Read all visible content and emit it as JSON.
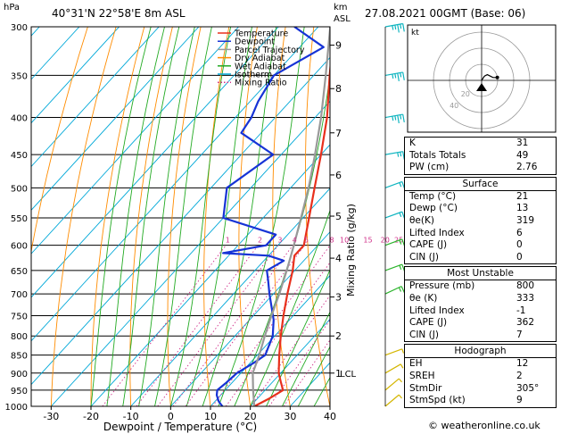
{
  "header": {
    "pressure_unit": "hPa",
    "location": "40°31'N  22°58'E  8m  ASL",
    "height_unit": "km",
    "height_unit_sub": "ASL",
    "datetime": "27.08.2021  00GMT  (Base: 06)"
  },
  "chart_data": {
    "type": "skew-t",
    "xlabel": "Dewpoint / Temperature (°C)",
    "ylabel": "hPa",
    "right_axis_label": "Mixing Ratio (g/kg)",
    "pressure_levels": [
      300,
      350,
      400,
      450,
      500,
      550,
      600,
      650,
      700,
      750,
      800,
      850,
      900,
      950,
      1000
    ],
    "temp_ticks": [
      -30,
      -20,
      -10,
      0,
      10,
      20,
      30,
      40
    ],
    "xlim": [
      -35,
      40
    ],
    "plim": [
      300,
      1000
    ],
    "height_ticks": [
      {
        "km": "1",
        "p": 900
      },
      {
        "km": "2",
        "p": 800
      },
      {
        "km": "3",
        "p": 707
      },
      {
        "km": "4",
        "p": 625
      },
      {
        "km": "5",
        "p": 547
      },
      {
        "km": "6",
        "p": 480
      },
      {
        "km": "7",
        "p": 420
      },
      {
        "km": "8",
        "p": 365
      },
      {
        "km": "9",
        "p": 318
      }
    ],
    "lcl_label": "LCL",
    "lcl_pressure": 900,
    "mixing_ratio_labels": [
      "1",
      "2",
      "3",
      "4",
      "5",
      "8",
      "10",
      "15",
      "20",
      "25"
    ],
    "legend": [
      {
        "label": "Temperature",
        "color": "#e8301c",
        "style": "solid"
      },
      {
        "label": "Dewpoint",
        "color": "#1633d6",
        "style": "solid"
      },
      {
        "label": "Parcel Trajectory",
        "color": "#999999",
        "style": "solid"
      },
      {
        "label": "Dry Adiabat",
        "color": "#ff8c00",
        "style": "solid"
      },
      {
        "label": "Wet Adiabat",
        "color": "#22aa22",
        "style": "solid"
      },
      {
        "label": "Isotherm",
        "color": "#00a8d8",
        "style": "solid"
      },
      {
        "label": "Mixing Ratio",
        "color": "#d0308a",
        "style": "dotted"
      }
    ],
    "series": [
      {
        "name": "Temperature",
        "p": [
          1000,
          975,
          950,
          925,
          900,
          850,
          800,
          750,
          700,
          650,
          620,
          600,
          550,
          500,
          450,
          400,
          350,
          300
        ],
        "t": [
          21,
          23,
          24.5,
          22,
          19.5,
          15.5,
          11.5,
          7.5,
          3.5,
          -0.5,
          -3.5,
          -3.5,
          -8.5,
          -14,
          -20,
          -27,
          -36,
          -46
        ]
      },
      {
        "name": "Dewpoint",
        "p": [
          1000,
          985,
          965,
          950,
          930,
          900,
          870,
          850,
          800,
          760,
          700,
          670,
          650,
          630,
          620,
          615,
          600,
          580,
          550,
          500,
          450,
          420,
          400,
          380,
          350,
          320,
          300
        ],
        "t": [
          13,
          11,
          9,
          8,
          8.5,
          9,
          11,
          12,
          9.5,
          6,
          -1,
          -4.5,
          -7,
          -5,
          -10,
          -22,
          -13,
          -13,
          -30,
          -36,
          -32,
          -45,
          -46,
          -48,
          -50,
          -44,
          -56
        ]
      },
      {
        "name": "Parcel Trajectory",
        "p": [
          1000,
          950,
          900,
          850,
          800,
          750,
          700,
          650,
          600,
          550,
          500,
          450,
          400,
          350,
          300
        ],
        "t": [
          21,
          17,
          13,
          10.5,
          7.5,
          4.5,
          1.5,
          -2,
          -6,
          -10.5,
          -15.5,
          -21.5,
          -28.5,
          -37,
          -47
        ]
      }
    ],
    "wind_barbs": [
      {
        "p": 1000,
        "dir": 230,
        "kt": 5
      },
      {
        "p": 950,
        "dir": 230,
        "kt": 5
      },
      {
        "p": 900,
        "dir": 240,
        "kt": 5
      },
      {
        "p": 850,
        "dir": 250,
        "kt": 5
      },
      {
        "p": 700,
        "dir": 245,
        "kt": 10
      },
      {
        "p": 650,
        "dir": 250,
        "kt": 10
      },
      {
        "p": 600,
        "dir": 250,
        "kt": 10
      },
      {
        "p": 550,
        "dir": 250,
        "kt": 10
      },
      {
        "p": 500,
        "dir": 250,
        "kt": 10
      },
      {
        "p": 450,
        "dir": 260,
        "kt": 15
      },
      {
        "p": 400,
        "dir": 260,
        "kt": 25
      },
      {
        "p": 350,
        "dir": 260,
        "kt": 25
      },
      {
        "p": 300,
        "dir": 260,
        "kt": 25
      }
    ]
  },
  "hodograph": {
    "unit": "kt",
    "rings": [
      {
        "label": "20"
      },
      {
        "label": "40"
      }
    ],
    "points": [
      [
        0,
        0
      ],
      [
        2,
        3
      ],
      [
        4,
        4
      ],
      [
        6,
        3
      ],
      [
        8,
        2
      ],
      [
        11,
        2
      ]
    ]
  },
  "indices": {
    "rows": [
      {
        "label": "K",
        "value": "31"
      },
      {
        "label": "Totals Totals",
        "value": "49"
      },
      {
        "label": "PW (cm)",
        "value": "2.76"
      }
    ]
  },
  "surface": {
    "title": "Surface",
    "rows": [
      {
        "label": "Temp (°C)",
        "value": "21"
      },
      {
        "label": "Dewp (°C)",
        "value": "13"
      },
      {
        "label": "θe(K)",
        "value": "319"
      },
      {
        "label": "Lifted Index",
        "value": "6"
      },
      {
        "label": "CAPE (J)",
        "value": "0"
      },
      {
        "label": "CIN (J)",
        "value": "0"
      }
    ]
  },
  "most_unstable": {
    "title": "Most Unstable",
    "rows": [
      {
        "label": "Pressure (mb)",
        "value": "800"
      },
      {
        "label": "θe (K)",
        "value": "333"
      },
      {
        "label": "Lifted Index",
        "value": "-1"
      },
      {
        "label": "CAPE (J)",
        "value": "362"
      },
      {
        "label": "CIN (J)",
        "value": "7"
      }
    ]
  },
  "hodograph_table": {
    "title": "Hodograph",
    "rows": [
      {
        "label": "EH",
        "value": "12"
      },
      {
        "label": "SREH",
        "value": "2"
      },
      {
        "label": "StmDir",
        "value": "305°"
      },
      {
        "label": "StmSpd (kt)",
        "value": "9"
      }
    ]
  },
  "footer": {
    "credit": "© weatheronline.co.uk"
  }
}
